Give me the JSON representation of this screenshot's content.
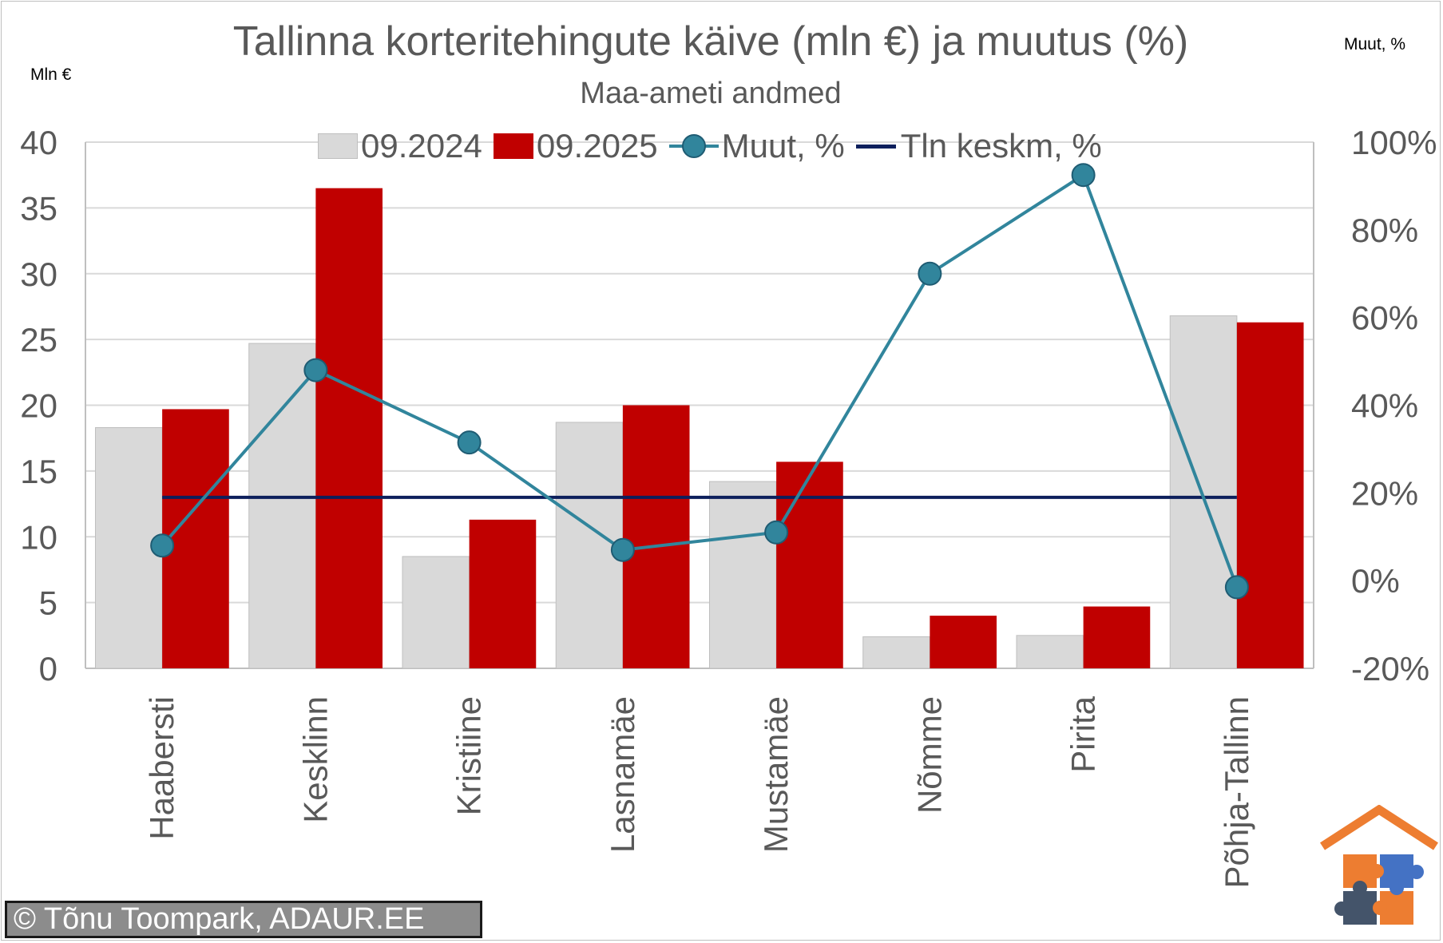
{
  "chart_data": {
    "type": "bar",
    "title": "Tallinna korteritehingute käive (mln €) ja muutus (%)",
    "subtitle": "Maa-ameti andmed",
    "ylabel_left": "Mln €",
    "ylabel_right": "Muut, %",
    "categories": [
      "Haabersti",
      "Kesklinn",
      "Kristiine",
      "Lasnamäe",
      "Mustamäe",
      "Nõmme",
      "Pirita",
      "Põhja-Tallinn"
    ],
    "series": [
      {
        "name": "09.2024",
        "kind": "bar",
        "axis": "left",
        "color": "#d9d9d9",
        "values": [
          18.3,
          24.7,
          8.5,
          18.7,
          14.2,
          2.4,
          2.5,
          26.8
        ]
      },
      {
        "name": "09.2025",
        "kind": "bar",
        "axis": "left",
        "color": "#c00000",
        "values": [
          19.7,
          36.5,
          11.3,
          20.0,
          15.7,
          4.0,
          4.7,
          26.3
        ]
      },
      {
        "name": "Muut, %",
        "kind": "line-marker",
        "axis": "right",
        "color": "#31859c",
        "values": [
          8,
          48,
          31.5,
          7,
          11,
          70,
          92.5,
          -1.5
        ]
      },
      {
        "name": "Tln keskm, %",
        "kind": "line",
        "axis": "right",
        "color": "#0d1f5c",
        "values": [
          19,
          19,
          19,
          19,
          19,
          19,
          19,
          19
        ]
      }
    ],
    "ylim_left": [
      0,
      40
    ],
    "yticks_left": [
      "0",
      "5",
      "10",
      "15",
      "20",
      "25",
      "30",
      "35",
      "40"
    ],
    "ylim_right": [
      -20,
      100
    ],
    "yticks_right": [
      "-20%",
      "0%",
      "20%",
      "40%",
      "60%",
      "80%",
      "100%"
    ],
    "grid": true,
    "legend": "top"
  },
  "footer": {
    "credit": "© Tõnu Toompark, ADAUR.EE"
  },
  "logo": {
    "icon": "house-puzzle-logo",
    "colors": [
      "#ed7d31",
      "#44546a",
      "#4472c4"
    ]
  }
}
